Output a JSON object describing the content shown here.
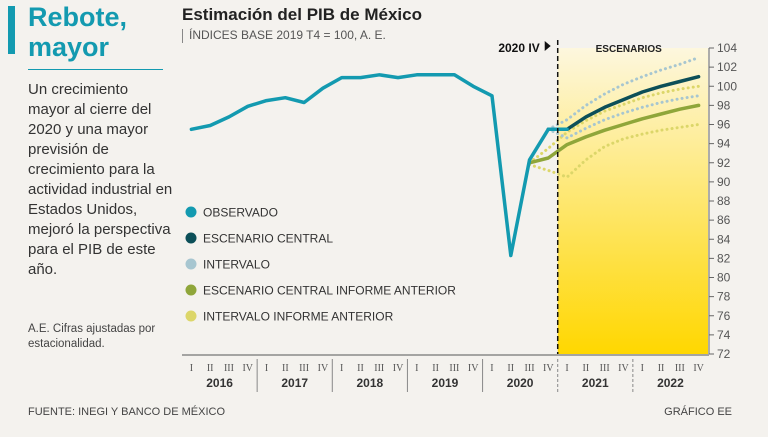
{
  "headline": {
    "line1": "Rebote,",
    "line2": "mayor"
  },
  "body_text": "Un crecimiento mayor al cierre del 2020 y una mayor previsión de crecimiento para la actividad industrial en Estados Unidos, mejoró la perspectiva para el PIB de este año.",
  "note": "A.E. Cifras ajustadas por estacionalidad.",
  "footer": {
    "source": "FUENTE: INEGI Y BANCO DE MÉXICO",
    "credit": "GRÁFICO EE"
  },
  "colors": {
    "observed": "#139ab0",
    "central": "#0c4f58",
    "interval": "#a7c6d0",
    "central_prev": "#8fa63a",
    "interval_prev": "#dcd669",
    "shade_top": "#fdf7de",
    "shade_bottom": "#ffd700",
    "accent": "#139ab0"
  },
  "chart_data": {
    "type": "line",
    "title": "Estimación del PIB de México",
    "subtitle": "ÍNDICES BASE 2019 T4 = 100, A. E.",
    "marker_label": "2020 IV",
    "scenarios_label": "ESCENARIOS",
    "ylim": [
      72,
      104
    ],
    "yticks": [
      72,
      74,
      76,
      78,
      80,
      82,
      84,
      86,
      88,
      90,
      92,
      94,
      96,
      98,
      100,
      102,
      104
    ],
    "quarters": [
      "I",
      "II",
      "III",
      "IV"
    ],
    "years": [
      "2016",
      "2017",
      "2018",
      "2019",
      "2020",
      "2021",
      "2022"
    ],
    "series": [
      {
        "name": "OBSERVADO",
        "style": "solid",
        "color_key": "observed",
        "points": [
          [
            1,
            95.5
          ],
          [
            2,
            95.9
          ],
          [
            3,
            96.8
          ],
          [
            4,
            97.9
          ],
          [
            5,
            98.5
          ],
          [
            6,
            98.8
          ],
          [
            7,
            98.3
          ],
          [
            8,
            99.8
          ],
          [
            9,
            100.9
          ],
          [
            10,
            100.9
          ],
          [
            11,
            101.2
          ],
          [
            12,
            100.9
          ],
          [
            13,
            101.2
          ],
          [
            14,
            101.2
          ],
          [
            15,
            101.2
          ],
          [
            16,
            100.0
          ],
          [
            17,
            99.0
          ],
          [
            18,
            82.3
          ],
          [
            19,
            92.3
          ],
          [
            20,
            95.5
          ],
          [
            21,
            95.5
          ]
        ]
      },
      {
        "name": "ESCENARIO CENTRAL",
        "style": "solid",
        "color_key": "central",
        "points": [
          [
            20,
            95.5
          ],
          [
            21,
            95.5
          ],
          [
            22,
            96.8
          ],
          [
            23,
            97.8
          ],
          [
            24,
            98.6
          ],
          [
            25,
            99.4
          ],
          [
            26,
            100.0
          ],
          [
            27,
            100.5
          ],
          [
            28,
            101.0
          ]
        ]
      },
      {
        "name": "INTERVALO",
        "style": "dotted",
        "color_key": "interval",
        "points": [
          [
            20,
            95.5
          ],
          [
            21,
            96.5
          ],
          [
            22,
            98.0
          ],
          [
            23,
            99.2
          ],
          [
            24,
            100.2
          ],
          [
            25,
            101.0
          ],
          [
            26,
            101.7
          ],
          [
            27,
            102.3
          ],
          [
            28,
            103.0
          ]
        ]
      },
      {
        "name": "INTERVALO_LOW",
        "style": "dotted",
        "color_key": "interval",
        "points": [
          [
            20,
            95.5
          ],
          [
            21,
            94.6
          ],
          [
            22,
            95.6
          ],
          [
            23,
            96.5
          ],
          [
            24,
            97.2
          ],
          [
            25,
            97.8
          ],
          [
            26,
            98.3
          ],
          [
            27,
            98.7
          ],
          [
            28,
            99.0
          ]
        ]
      },
      {
        "name": "ESCENARIO CENTRAL INFORME ANTERIOR",
        "style": "solid",
        "color_key": "central_prev",
        "points": [
          [
            19,
            92.0
          ],
          [
            20,
            92.5
          ],
          [
            21,
            93.9
          ],
          [
            22,
            94.7
          ],
          [
            23,
            95.4
          ],
          [
            24,
            96.0
          ],
          [
            25,
            96.6
          ],
          [
            26,
            97.1
          ],
          [
            27,
            97.6
          ],
          [
            28,
            98.0
          ]
        ]
      },
      {
        "name": "INTERVALO INFORME ANTERIOR",
        "style": "dotted",
        "color_key": "interval_prev",
        "points": [
          [
            19,
            92.0
          ],
          [
            20,
            93.5
          ],
          [
            21,
            95.2
          ],
          [
            22,
            96.4
          ],
          [
            23,
            97.4
          ],
          [
            24,
            98.1
          ],
          [
            25,
            98.8
          ],
          [
            26,
            99.3
          ],
          [
            27,
            99.7
          ],
          [
            28,
            100.0
          ]
        ]
      },
      {
        "name": "INTERVALO_ANTERIOR_LOW",
        "style": "dotted",
        "color_key": "interval_prev",
        "points": [
          [
            19,
            91.8
          ],
          [
            20,
            91.2
          ],
          [
            21,
            90.5
          ],
          [
            22,
            92.3
          ],
          [
            23,
            93.7
          ],
          [
            24,
            94.5
          ],
          [
            25,
            95.0
          ],
          [
            26,
            95.4
          ],
          [
            27,
            95.7
          ],
          [
            28,
            96.0
          ]
        ]
      }
    ],
    "legend": [
      {
        "label": "OBSERVADO",
        "color_key": "observed"
      },
      {
        "label": "ESCENARIO CENTRAL",
        "color_key": "central"
      },
      {
        "label": "INTERVALO",
        "color_key": "interval"
      },
      {
        "label": "ESCENARIO CENTRAL INFORME ANTERIOR",
        "color_key": "central_prev"
      },
      {
        "label": "INTERVALO INFORME ANTERIOR",
        "color_key": "interval_prev"
      }
    ],
    "forecast_start_quarter": 20.5,
    "forecast_end_quarter": 28.5
  }
}
